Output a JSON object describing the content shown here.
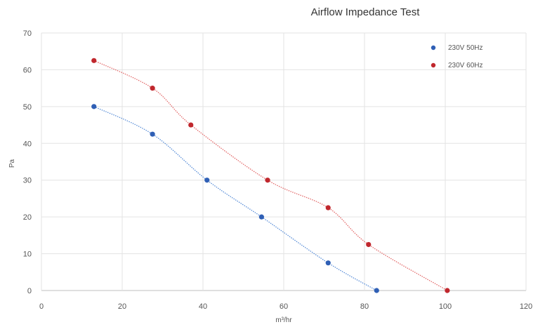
{
  "chart_data": {
    "type": "scatter",
    "title": "Airflow Impedance Test",
    "xlabel": "m³/hr",
    "ylabel": "Pa",
    "xlim": [
      0,
      120
    ],
    "ylim": [
      0,
      70
    ],
    "x_ticks": [
      "0",
      "20",
      "40",
      "60",
      "80",
      "100",
      "120"
    ],
    "y_ticks": [
      "0",
      "10",
      "20",
      "30",
      "40",
      "50",
      "60",
      "70"
    ],
    "grid": true,
    "legend_position": "top-right",
    "trendlines": "dotted",
    "series": [
      {
        "name": "230V 50Hz",
        "color": "#2f5fb5",
        "trend_color": "#5b8fd8",
        "points": [
          [
            13,
            50
          ],
          [
            27.5,
            42.5
          ],
          [
            41,
            30
          ],
          [
            54.5,
            20
          ],
          [
            71,
            7.5
          ],
          [
            83,
            0
          ]
        ]
      },
      {
        "name": "230V 60Hz",
        "color": "#c0272d",
        "trend_color": "#e36b6b",
        "points": [
          [
            13,
            62.5
          ],
          [
            27.5,
            55
          ],
          [
            37,
            45
          ],
          [
            56,
            30
          ],
          [
            71,
            22.5
          ],
          [
            81,
            12.5
          ],
          [
            100.5,
            0
          ]
        ]
      }
    ]
  }
}
